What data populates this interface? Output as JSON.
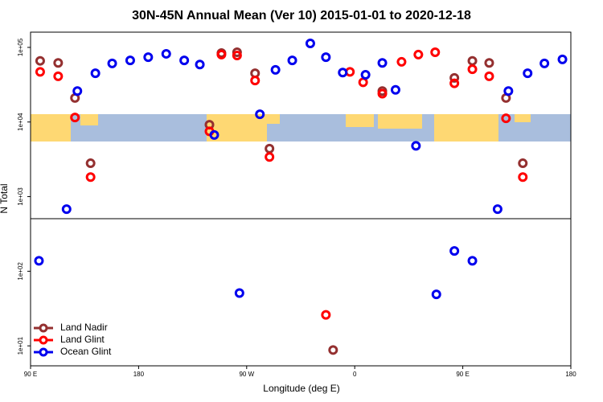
{
  "chart_data": {
    "type": "scatter",
    "title": "30N-45N Annual Mean (Ver 10)   2015-01-01 to 2020-12-18",
    "x_label": "Longitude (deg E)",
    "y_label": "N Total",
    "xlim": [
      90,
      540
    ],
    "ylim": [
      5.4,
      160000
    ],
    "log_y": true,
    "legend": "lower left",
    "xticks": [
      {
        "value": 90,
        "label": "90 E"
      },
      180,
      {
        "value": 270,
        "label": "90 W"
      },
      {
        "value": 360,
        "label": "0"
      },
      {
        "value": 450,
        "label": "90 E"
      },
      {
        "value": 540,
        "label": "180"
      }
    ],
    "yticks": [
      {
        "value": 10,
        "label": "1e+01"
      },
      {
        "value": 100,
        "label": "1e+02"
      },
      {
        "value": 1000,
        "label": "1e+03"
      },
      {
        "value": 10000,
        "label": "1e+04"
      },
      {
        "value": 100000,
        "label": "1e+05"
      }
    ],
    "series": [
      {
        "name": "Land Nadir",
        "color": "#943030",
        "x": [
          98,
          113,
          127,
          140,
          239,
          249,
          262,
          277,
          289,
          342,
          383,
          443,
          458,
          472,
          486,
          500
        ],
        "values": [
          66000,
          62000,
          21000,
          2800,
          9200,
          84000,
          86000,
          45000,
          4400,
          8.8,
          26000,
          39000,
          66000,
          62000,
          21000,
          2800
        ]
      },
      {
        "name": "Land Glint",
        "color": "#ff0000",
        "x": [
          98,
          113,
          127,
          140,
          239,
          249,
          262,
          277,
          289,
          336,
          356,
          367,
          383,
          399,
          413,
          427,
          443,
          458,
          472,
          486,
          500
        ],
        "values": [
          47000,
          41000,
          11500,
          1830,
          7500,
          80000,
          78000,
          36000,
          3400,
          26,
          47000,
          34000,
          24000,
          64000,
          80000,
          86000,
          33000,
          51000,
          41000,
          11200,
          1830
        ]
      },
      {
        "name": "Ocean Glint",
        "color": "#0000ee",
        "x": [
          97,
          120,
          129,
          144,
          158,
          173,
          188,
          203,
          218,
          231,
          243,
          264,
          281,
          294,
          308,
          323,
          336,
          350,
          369,
          383,
          394,
          411,
          428,
          443,
          458,
          479,
          488,
          504,
          518,
          533
        ],
        "values": [
          138,
          680,
          26000,
          45000,
          61000,
          67000,
          74000,
          82000,
          67000,
          59000,
          6700,
          51,
          12700,
          50000,
          67000,
          113000,
          74000,
          46000,
          43000,
          62000,
          27000,
          4800,
          49,
          187,
          138,
          680,
          26000,
          45000,
          61000,
          69000
        ]
      }
    ]
  }
}
